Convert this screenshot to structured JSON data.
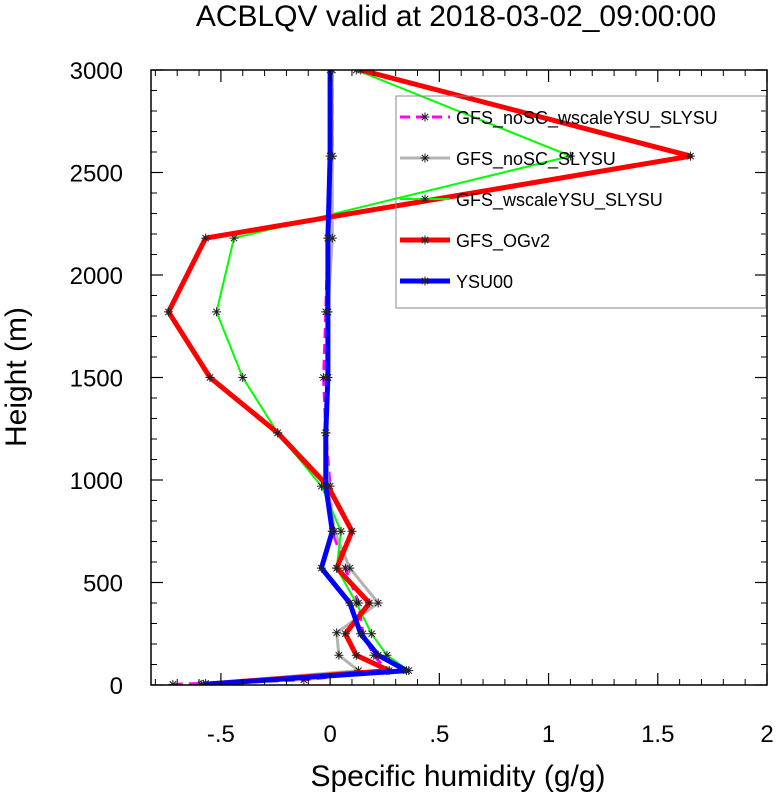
{
  "chart_data": {
    "type": "line",
    "title": "ACBLQV valid at 2018-03-02_09:00:00",
    "xlabel": "Specific humidity (g/g)",
    "ylabel": "Height (m)",
    "xlim": [
      -0.82,
      2.0
    ],
    "ylim": [
      0,
      3000
    ],
    "x_ticks": [
      {
        "value": -0.5,
        "label": "-.5"
      },
      {
        "value": 0,
        "label": "0"
      },
      {
        "value": 0.5,
        "label": ".5"
      },
      {
        "value": 1,
        "label": "1"
      },
      {
        "value": 1.5,
        "label": "1.5"
      },
      {
        "value": 2,
        "label": "2"
      }
    ],
    "y_ticks": [
      {
        "value": 0,
        "label": "0"
      },
      {
        "value": 500,
        "label": "500"
      },
      {
        "value": 1000,
        "label": "1000"
      },
      {
        "value": 1500,
        "label": "1500"
      },
      {
        "value": 2000,
        "label": "2000"
      },
      {
        "value": 2500,
        "label": "2500"
      },
      {
        "value": 3000,
        "label": "3000"
      }
    ],
    "grid": false,
    "legend_position": "top-right",
    "series": [
      {
        "name": "GFS_noSC_wscaleYSU_SLYSU",
        "color": "#ff00ff",
        "dashed": true,
        "width": 3,
        "points": [
          [
            -0.72,
            3
          ],
          [
            -0.12,
            25
          ],
          [
            0.26,
            70
          ],
          [
            0.2,
            145
          ],
          [
            0.15,
            250
          ],
          [
            0.13,
            400
          ],
          [
            0.07,
            570
          ],
          [
            0.01,
            750
          ],
          [
            0.0,
            970
          ],
          [
            -0.02,
            1230
          ],
          [
            -0.03,
            1500
          ],
          [
            -0.02,
            1820
          ],
          [
            -0.01,
            2180
          ],
          [
            0.01,
            2580
          ],
          [
            0.01,
            3000
          ]
        ]
      },
      {
        "name": "GFS_noSC_SLYSU",
        "color": "#b3b3b3",
        "dashed": false,
        "width": 3,
        "points": [
          [
            -0.57,
            8
          ],
          [
            0.13,
            70
          ],
          [
            0.04,
            145
          ],
          [
            0.03,
            255
          ],
          [
            0.22,
            400
          ],
          [
            0.09,
            570
          ],
          [
            0.02,
            750
          ],
          [
            -0.01,
            970
          ],
          [
            -0.02,
            1230
          ],
          [
            -0.01,
            1500
          ],
          [
            -0.01,
            1820
          ],
          [
            0.01,
            2180
          ],
          [
            0.01,
            2580
          ],
          [
            0.01,
            3000
          ]
        ]
      },
      {
        "name": "GFS_wscaleYSU_SLYSU",
        "color": "#00ff00",
        "dashed": false,
        "width": 2,
        "points": [
          [
            -0.59,
            3
          ],
          [
            0.36,
            70
          ],
          [
            0.26,
            145
          ],
          [
            0.19,
            250
          ],
          [
            0.12,
            400
          ],
          [
            0.03,
            570
          ],
          [
            0.05,
            750
          ],
          [
            -0.04,
            970
          ],
          [
            -0.24,
            1230
          ],
          [
            -0.4,
            1500
          ],
          [
            -0.52,
            1820
          ],
          [
            -0.44,
            2180
          ],
          [
            1.1,
            2580
          ],
          [
            0.12,
            3000
          ]
        ]
      },
      {
        "name": "GFS_OGv2",
        "color": "#ff0000",
        "dashed": false,
        "width": 5,
        "points": [
          [
            -0.58,
            3
          ],
          [
            0.27,
            70
          ],
          [
            0.12,
            145
          ],
          [
            0.07,
            250
          ],
          [
            0.18,
            400
          ],
          [
            0.03,
            570
          ],
          [
            0.1,
            750
          ],
          [
            -0.01,
            970
          ],
          [
            -0.24,
            1230
          ],
          [
            -0.55,
            1500
          ],
          [
            -0.74,
            1820
          ],
          [
            -0.57,
            2180
          ],
          [
            1.65,
            2580
          ],
          [
            0.14,
            3000
          ]
        ]
      },
      {
        "name": "YSU00",
        "color": "#0000ff",
        "dashed": false,
        "width": 5,
        "points": [
          [
            -0.58,
            3
          ],
          [
            0.35,
            70
          ],
          [
            0.22,
            145
          ],
          [
            0.14,
            250
          ],
          [
            0.09,
            400
          ],
          [
            -0.04,
            570
          ],
          [
            0.01,
            750
          ],
          [
            -0.02,
            970
          ],
          [
            -0.02,
            1230
          ],
          [
            -0.01,
            1500
          ],
          [
            -0.01,
            1820
          ],
          [
            -0.01,
            2180
          ],
          [
            0.0,
            2580
          ],
          [
            0.0,
            3000
          ]
        ]
      }
    ]
  }
}
